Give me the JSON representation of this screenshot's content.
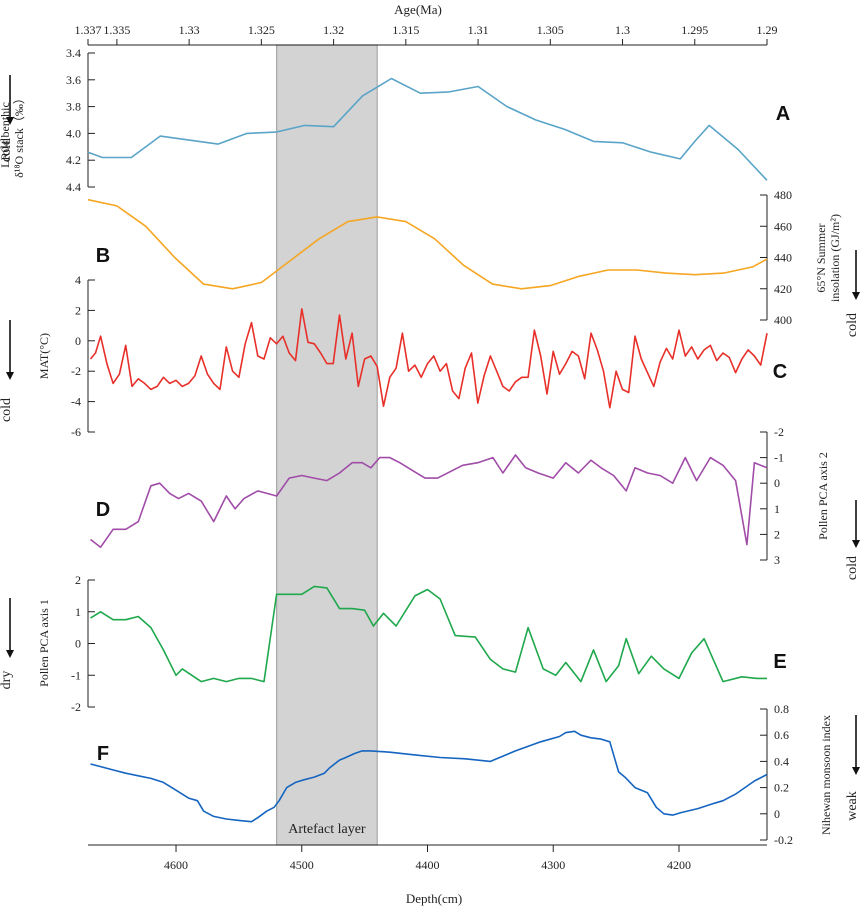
{
  "chart_data": [
    {
      "id": "A",
      "type": "line",
      "panel_letter": "A",
      "ylabel_lines": [
        "LR04 benthic",
        "δ¹⁸O stack（‰）"
      ],
      "direction_label": "cold",
      "ylim": [
        4.4,
        3.4
      ],
      "yticks": [
        3.4,
        3.6,
        3.8,
        4.0,
        4.2,
        4.4
      ],
      "ytick_labels": [
        "3.4",
        "3.6",
        "3.8",
        "4.0",
        "4.2",
        "4.4"
      ],
      "color": "#5aa4c8",
      "series": [
        {
          "name": "LR04 δ18O",
          "x": [
            1.337,
            1.336,
            1.334,
            1.332,
            1.33,
            1.328,
            1.326,
            1.324,
            1.322,
            1.32,
            1.318,
            1.316,
            1.314,
            1.312,
            1.31,
            1.308,
            1.306,
            1.304,
            1.302,
            1.3,
            1.298,
            1.296,
            1.295,
            1.294,
            1.292,
            1.29
          ],
          "y": [
            4.14,
            4.18,
            4.18,
            4.02,
            4.05,
            4.08,
            4.0,
            3.99,
            3.94,
            3.95,
            3.72,
            3.59,
            3.7,
            3.69,
            3.65,
            3.8,
            3.9,
            3.97,
            4.06,
            4.07,
            4.14,
            4.19,
            4.06,
            3.94,
            4.12,
            4.35
          ]
        }
      ]
    },
    {
      "id": "B",
      "type": "line",
      "panel_letter": "B",
      "ylabel_lines": [
        "65°N  Summer",
        "insolation (GJ/m²)"
      ],
      "direction_label": "cold",
      "ylim": [
        400,
        480
      ],
      "yticks": [
        400,
        420,
        440,
        460,
        480
      ],
      "ytick_labels": [
        "400",
        "420",
        "440",
        "460",
        "480"
      ],
      "color": "#f5a623",
      "series": [
        {
          "name": "Insolation",
          "x": [
            1.337,
            1.335,
            1.333,
            1.331,
            1.329,
            1.327,
            1.325,
            1.323,
            1.321,
            1.319,
            1.317,
            1.315,
            1.313,
            1.311,
            1.309,
            1.307,
            1.305,
            1.303,
            1.301,
            1.299,
            1.297,
            1.295,
            1.293,
            1.291,
            1.29
          ],
          "y": [
            477,
            473,
            460,
            440,
            423,
            420,
            424,
            438,
            452,
            463,
            466,
            463,
            452,
            435,
            423,
            420,
            422,
            428,
            432,
            432,
            430,
            429,
            430,
            434,
            439
          ]
        }
      ]
    },
    {
      "id": "C",
      "type": "line",
      "panel_letter": "C",
      "ylabel_lines": [
        "MAT(°C)"
      ],
      "direction_label": "cold",
      "ylim": [
        -6,
        4
      ],
      "yticks": [
        -6,
        -4,
        -2,
        0,
        2,
        4
      ],
      "ytick_labels": [
        "-6",
        "-4",
        "-2",
        "0",
        "2",
        "4"
      ],
      "color": "#e8302a",
      "series": [
        {
          "name": "MAT",
          "x": [
            4668,
            4664,
            4660,
            4655,
            4650,
            4645,
            4640,
            4635,
            4630,
            4625,
            4620,
            4615,
            4610,
            4605,
            4600,
            4595,
            4590,
            4585,
            4580,
            4575,
            4570,
            4565,
            4560,
            4555,
            4550,
            4545,
            4540,
            4535,
            4530,
            4525,
            4520,
            4515,
            4510,
            4505,
            4500,
            4495,
            4490,
            4485,
            4480,
            4475,
            4470,
            4465,
            4460,
            4455,
            4450,
            4445,
            4440,
            4435,
            4430,
            4425,
            4420,
            4415,
            4410,
            4405,
            4400,
            4395,
            4390,
            4385,
            4380,
            4375,
            4370,
            4365,
            4360,
            4355,
            4350,
            4345,
            4340,
            4335,
            4330,
            4325,
            4320,
            4315,
            4310,
            4305,
            4300,
            4295,
            4290,
            4285,
            4280,
            4275,
            4270,
            4265,
            4260,
            4255,
            4250,
            4245,
            4240,
            4235,
            4230,
            4225,
            4220,
            4215,
            4210,
            4205,
            4200,
            4195,
            4190,
            4185,
            4180,
            4175,
            4170,
            4165,
            4160,
            4155,
            4150,
            4145,
            4140,
            4135,
            4130
          ],
          "y": [
            -1.2,
            -0.8,
            0.3,
            -1.5,
            -2.8,
            -2.2,
            -0.3,
            -3.0,
            -2.5,
            -2.8,
            -3.2,
            -3.0,
            -2.4,
            -2.8,
            -2.6,
            -3.0,
            -2.8,
            -2.3,
            -1.0,
            -2.2,
            -2.8,
            -3.2,
            -0.4,
            -2.0,
            -2.4,
            -0.2,
            1.2,
            -1.0,
            -1.2,
            0.2,
            -0.2,
            0.3,
            -0.8,
            -1.3,
            2.1,
            -0.1,
            -0.2,
            -0.8,
            -1.5,
            -1.5,
            1.7,
            -1.2,
            0.5,
            -3.0,
            -1.2,
            -1.0,
            -1.7,
            -4.3,
            -2.4,
            -1.8,
            0.5,
            -2.0,
            -1.6,
            -2.4,
            -1.5,
            -1.0,
            -2.0,
            -1.5,
            -3.3,
            -3.8,
            -1.8,
            -0.8,
            -4.1,
            -2.3,
            -1.0,
            -2.0,
            -3.0,
            -3.3,
            -2.7,
            -2.4,
            -2.4,
            0.7,
            -1.0,
            -3.5,
            -0.7,
            -2.2,
            -1.5,
            -0.7,
            -1.0,
            -2.5,
            0.5,
            -0.6,
            -2.0,
            -4.4,
            -2.0,
            -3.2,
            -3.4,
            0.3,
            -1.2,
            -2.1,
            -3.0,
            -1.4,
            -0.5,
            -1.2,
            0.7,
            -1.0,
            -0.4,
            -1.2,
            -0.6,
            -0.3,
            -1.3,
            -0.8,
            -1.1,
            -2.1,
            -1.2,
            -0.6,
            -1.0,
            -1.6,
            0.5
          ]
        }
      ]
    },
    {
      "id": "D",
      "type": "line",
      "panel_letter": "D",
      "ylabel_lines": [
        "Pollen PCA axis 2"
      ],
      "direction_label": "cold",
      "ylim": [
        3,
        -2
      ],
      "yticks": [
        3,
        2,
        1,
        0,
        -1,
        -2
      ],
      "ytick_labels": [
        "3",
        "2",
        "1",
        "0",
        "-1",
        "-2"
      ],
      "color": "#a04ca8",
      "series": [
        {
          "name": "PCA2",
          "x": [
            4668,
            4660,
            4650,
            4640,
            4630,
            4620,
            4613,
            4605,
            4598,
            4590,
            4580,
            4570,
            4560,
            4553,
            4546,
            4535,
            4520,
            4510,
            4500,
            4490,
            4480,
            4470,
            4460,
            4452,
            4445,
            4438,
            4430,
            4422,
            4412,
            4402,
            4392,
            4380,
            4372,
            4360,
            4348,
            4340,
            4330,
            4322,
            4312,
            4300,
            4290,
            4280,
            4270,
            4262,
            4252,
            4242,
            4235,
            4225,
            4215,
            4205,
            4195,
            4186,
            4175,
            4165,
            4155,
            4146,
            4140,
            4130
          ],
          "y": [
            2.2,
            2.5,
            1.8,
            1.8,
            1.5,
            0.1,
            0.0,
            0.4,
            0.6,
            0.4,
            0.7,
            1.5,
            0.5,
            1.0,
            0.6,
            0.3,
            0.5,
            -0.2,
            -0.3,
            -0.2,
            -0.1,
            -0.4,
            -0.8,
            -0.8,
            -0.6,
            -1.0,
            -1.0,
            -0.8,
            -0.5,
            -0.2,
            -0.2,
            -0.5,
            -0.7,
            -0.8,
            -1.0,
            -0.4,
            -1.1,
            -0.6,
            -0.4,
            -0.2,
            -0.8,
            -0.4,
            -0.9,
            -0.6,
            -0.3,
            0.3,
            -0.6,
            -0.4,
            -0.3,
            0.0,
            -1.0,
            -0.1,
            -1.0,
            -0.7,
            -0.1,
            2.4,
            -0.8,
            -0.6
          ]
        }
      ]
    },
    {
      "id": "E",
      "type": "line",
      "panel_letter": "E",
      "ylabel_lines": [
        "Pollen PCA axis 1"
      ],
      "direction_label": "dry",
      "ylim": [
        -2,
        2
      ],
      "yticks": [
        -2,
        -1,
        0,
        1,
        2
      ],
      "ytick_labels": [
        "-2",
        "-1",
        "0",
        "1",
        "2"
      ],
      "color": "#1fa84c",
      "series": [
        {
          "name": "PCA1",
          "x": [
            4668,
            4660,
            4650,
            4640,
            4630,
            4620,
            4610,
            4600,
            4595,
            4580,
            4570,
            4560,
            4550,
            4540,
            4530,
            4520,
            4510,
            4500,
            4490,
            4480,
            4470,
            4460,
            4450,
            4443,
            4435,
            4425,
            4410,
            4400,
            4390,
            4378,
            4362,
            4350,
            4340,
            4330,
            4320,
            4308,
            4298,
            4290,
            4278,
            4268,
            4258,
            4248,
            4242,
            4232,
            4222,
            4212,
            4200,
            4190,
            4180,
            4165,
            4150,
            4138,
            4130
          ],
          "y": [
            0.8,
            1.0,
            0.75,
            0.75,
            0.85,
            0.5,
            -0.2,
            -1.0,
            -0.8,
            -1.2,
            -1.1,
            -1.2,
            -1.1,
            -1.1,
            -1.2,
            1.55,
            1.55,
            1.55,
            1.8,
            1.75,
            1.1,
            1.1,
            1.05,
            0.55,
            0.95,
            0.55,
            1.5,
            1.7,
            1.4,
            0.25,
            0.2,
            -0.5,
            -0.8,
            -0.9,
            0.5,
            -0.8,
            -1.0,
            -0.6,
            -1.2,
            -0.2,
            -1.2,
            -0.7,
            0.15,
            -0.95,
            -0.4,
            -0.8,
            -1.1,
            -0.3,
            0.15,
            -1.2,
            -1.05,
            -1.1,
            -1.1
          ]
        }
      ]
    },
    {
      "id": "F",
      "type": "line",
      "panel_letter": "F",
      "ylabel_lines": [
        "Nihewan monsoon index"
      ],
      "direction_label": "weak",
      "ylim": [
        -0.2,
        0.8
      ],
      "yticks": [
        -0.2,
        0,
        0.2,
        0.4,
        0.6,
        0.8
      ],
      "ytick_labels": [
        "-0.2",
        "0",
        "0.2",
        "0.4",
        "0.6",
        "0.8"
      ],
      "xlabel": "Depth(cm)",
      "xlim": [
        4670,
        4130
      ],
      "xticks": [
        4600,
        4500,
        4400,
        4300,
        4200
      ],
      "xtick_labels": [
        "4600",
        "4500",
        "4400",
        "4300",
        "4200"
      ],
      "color": "#1565c0",
      "series": [
        {
          "name": "Monsoon index",
          "x": [
            4668,
            4660,
            4648,
            4640,
            4630,
            4620,
            4610,
            4600,
            4590,
            4583,
            4578,
            4570,
            4560,
            4550,
            4540,
            4535,
            4528,
            4522,
            4518,
            4512,
            4505,
            4498,
            4490,
            4482,
            4478,
            4470,
            4465,
            4458,
            4452,
            4445,
            4430,
            4410,
            4390,
            4370,
            4350,
            4330,
            4310,
            4295,
            4290,
            4283,
            4278,
            4270,
            4262,
            4255,
            4248,
            4243,
            4235,
            4225,
            4218,
            4212,
            4205,
            4198,
            4185,
            4172,
            4165,
            4155,
            4140,
            4130
          ],
          "y": [
            0.38,
            0.36,
            0.33,
            0.31,
            0.29,
            0.27,
            0.24,
            0.18,
            0.12,
            0.1,
            0.02,
            -0.02,
            -0.04,
            -0.05,
            -0.06,
            -0.03,
            0.02,
            0.05,
            0.1,
            0.2,
            0.24,
            0.26,
            0.28,
            0.31,
            0.35,
            0.41,
            0.43,
            0.46,
            0.48,
            0.48,
            0.47,
            0.45,
            0.43,
            0.42,
            0.4,
            0.48,
            0.55,
            0.59,
            0.62,
            0.63,
            0.6,
            0.58,
            0.57,
            0.55,
            0.32,
            0.28,
            0.2,
            0.16,
            0.05,
            0.0,
            -0.01,
            0.01,
            0.04,
            0.08,
            0.1,
            0.15,
            0.25,
            0.3
          ]
        }
      ]
    }
  ],
  "top_axis": {
    "title": "Age(Ma)",
    "xlim": [
      1.337,
      1.29
    ],
    "ticks": [
      1.337,
      1.335,
      1.33,
      1.325,
      1.32,
      1.315,
      1.31,
      1.305,
      1.3,
      1.295,
      1.29
    ],
    "tick_labels": [
      "1.337",
      "1.335",
      "1.33",
      "1.325",
      "1.32",
      "1.315",
      "1.31",
      "1.305",
      "1.3",
      "1.295",
      "1.29"
    ]
  },
  "artefact_layer": {
    "label": "Artefact layer",
    "depth_range": [
      4520,
      4440
    ],
    "color": "#d3d3d3"
  }
}
